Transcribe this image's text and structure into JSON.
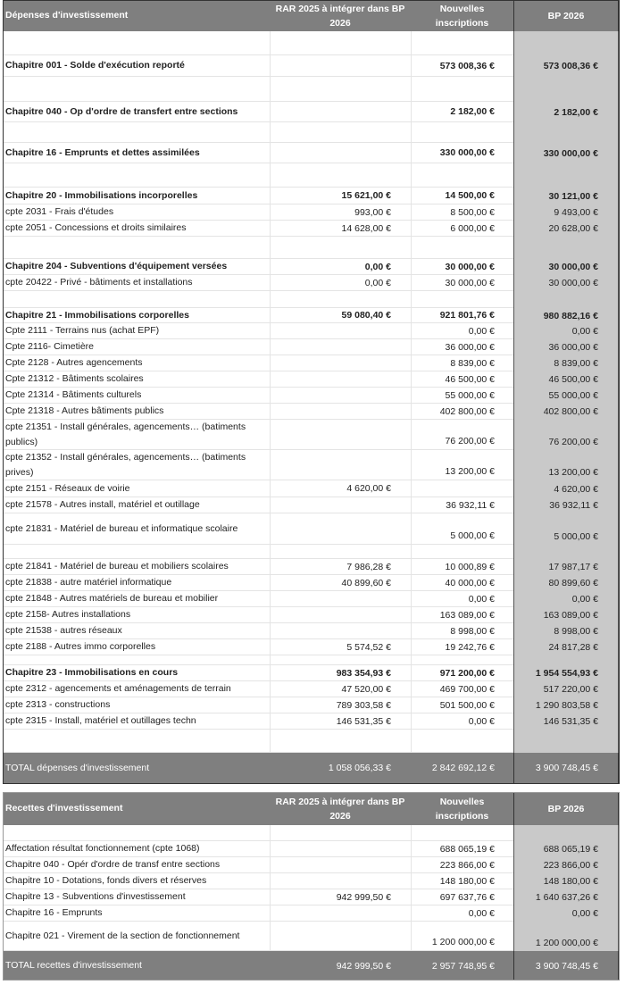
{
  "depenses": {
    "header": {
      "label": "Dépenses d'investissement",
      "rar": "RAR 2025 à intégrer dans BP 2026",
      "nouvelles": "Nouvelles inscriptions",
      "bp": "BP 2026"
    },
    "rows": [
      {
        "label": "Chapitre 001 - Solde d'exécution reporté",
        "rar": "",
        "nouvelles": "573 008,36 €",
        "bp": "573 008,36 €",
        "bold": true
      },
      {
        "label": "Chapitre 040 - Op d'ordre de transfert entre sections",
        "rar": "",
        "nouvelles": "2 182,00 €",
        "bp": "2 182,00 €",
        "bold": true
      },
      {
        "label": "Chapitre 16 - Emprunts et dettes assimilées",
        "rar": "",
        "nouvelles": "330 000,00 €",
        "bp": "330 000,00 €",
        "bold": true
      },
      {
        "label": "Chapitre 20 - Immobilisations incorporelles",
        "rar": "15 621,00 €",
        "nouvelles": "14 500,00 €",
        "bp": "30 121,00 €",
        "bold": true
      },
      {
        "label": "cpte 2031 - Frais d'études",
        "rar": "993,00 €",
        "nouvelles": "8 500,00 €",
        "bp": "9 493,00 €"
      },
      {
        "label": "cpte 2051 - Concessions et droits similaires",
        "rar": "14 628,00 €",
        "nouvelles": "6 000,00 €",
        "bp": "20 628,00 €"
      },
      {
        "label": "Chapitre 204 - Subventions d'équipement versées",
        "rar": "0,00 €",
        "nouvelles": "30 000,00 €",
        "bp": "30 000,00 €",
        "bold": true
      },
      {
        "label": "cpte 20422 - Privé - bâtiments et installations",
        "rar": "0,00 €",
        "nouvelles": "30 000,00 €",
        "bp": "30 000,00 €"
      },
      {
        "label": "Chapitre 21 - Immobilisations corporelles",
        "rar": "59 080,40 €",
        "nouvelles": "921 801,76 €",
        "bp": "980 882,16 €",
        "bold": true
      },
      {
        "label": "Cpte 2111 - Terrains nus (achat EPF)",
        "rar": "",
        "nouvelles": "0,00 €",
        "bp": "0,00 €"
      },
      {
        "label": "Cpte 2116- Cimetière",
        "rar": "",
        "nouvelles": "36 000,00 €",
        "bp": "36 000,00 €"
      },
      {
        "label": "Cpte 2128 - Autres agencements",
        "rar": "",
        "nouvelles": "8 839,00 €",
        "bp": "8 839,00 €"
      },
      {
        "label": "Cpte 21312 - Bâtiments scolaires",
        "rar": "",
        "nouvelles": "46 500,00 €",
        "bp": "46 500,00 €"
      },
      {
        "label": "Cpte 21314 - Bâtiments culturels",
        "rar": "",
        "nouvelles": "55 000,00 €",
        "bp": "55 000,00 €"
      },
      {
        "label": "Cpte 21318 - Autres bâtiments publics",
        "rar": "",
        "nouvelles": "402 800,00 €",
        "bp": "402 800,00 €"
      },
      {
        "label": "cpte 21351 - Install générales, agencements… (batiments publics)",
        "rar": "",
        "nouvelles": "76 200,00 €",
        "bp": "76 200,00 €"
      },
      {
        "label": "cpte 21352 - Install générales, agencements… (batiments prives)",
        "rar": "",
        "nouvelles": "13 200,00 €",
        "bp": "13 200,00 €"
      },
      {
        "label": "cpte 2151 - Réseaux de voirie",
        "rar": "4 620,00 €",
        "nouvelles": "",
        "bp": "4 620,00 €"
      },
      {
        "label": "cpte 21578 - Autres install, matériel et outillage",
        "rar": "",
        "nouvelles": "36 932,11 €",
        "bp": "36 932,11 €"
      },
      {
        "label": "cpte 21831 - Matériel de bureau et informatique scolaire",
        "rar": "",
        "nouvelles": "5 000,00 €",
        "bp": "5 000,00 €"
      },
      {
        "label": "cpte 21841 - Matériel de bureau et mobiliers scolaires",
        "rar": "7 986,28 €",
        "nouvelles": "10 000,89 €",
        "bp": "17 987,17 €"
      },
      {
        "label": "cpte 21838 - autre matériel informatique",
        "rar": "40 899,60 €",
        "nouvelles": "40 000,00 €",
        "bp": "80 899,60 €"
      },
      {
        "label": "cpte 21848 - Autres matériels de bureau et mobilier",
        "rar": "",
        "nouvelles": "0,00 €",
        "bp": "0,00 €"
      },
      {
        "label": "cpte 2158- Autres installations",
        "rar": "",
        "nouvelles": "163 089,00 €",
        "bp": "163 089,00 €"
      },
      {
        "label": "cpte 21538 - autres réseaux",
        "rar": "",
        "nouvelles": "8 998,00 €",
        "bp": "8 998,00 €"
      },
      {
        "label": "cpte 2188 - Autres immo corporelles",
        "rar": "5 574,52 €",
        "nouvelles": "19 242,76 €",
        "bp": "24 817,28 €"
      },
      {
        "label": "Chapitre 23 - Immobilisations en cours",
        "rar": "983 354,93 €",
        "nouvelles": "971 200,00 €",
        "bp": "1 954 554,93 €",
        "bold": true
      },
      {
        "label": "cpte 2312 - agencements et aménagements de terrain",
        "rar": "47 520,00 €",
        "nouvelles": "469 700,00 €",
        "bp": "517 220,00 €"
      },
      {
        "label": "cpte 2313 - constructions",
        "rar": "789 303,58 €",
        "nouvelles": "501 500,00 €",
        "bp": "1 290 803,58 €"
      },
      {
        "label": "cpte 2315 - Install, matériel et outillages techn",
        "rar": "146 531,35 €",
        "nouvelles": "0,00 €",
        "bp": "146 531,35 €"
      }
    ],
    "total": {
      "label": "TOTAL dépenses d'investissement",
      "rar": "1 058 056,33 €",
      "nouvelles": "2 842 692,12 €",
      "bp": "3 900 748,45 €"
    }
  },
  "recettes": {
    "header": {
      "label": "Recettes d'investissement",
      "rar": "RAR 2025 à intégrer dans BP 2026",
      "nouvelles": "Nouvelles inscriptions",
      "bp": "BP 2026"
    },
    "rows": [
      {
        "label": "Affectation résultat fonctionnement (cpte 1068)",
        "rar": "",
        "nouvelles": "688 065,19 €",
        "bp": "688 065,19 €"
      },
      {
        "label": "Chapitre 040 - Opér d'ordre de transf entre sections",
        "rar": "",
        "nouvelles": "223 866,00 €",
        "bp": "223 866,00 €"
      },
      {
        "label": "Chapitre 10 - Dotations, fonds divers et réserves",
        "rar": "",
        "nouvelles": "148 180,00 €",
        "bp": "148 180,00 €"
      },
      {
        "label": "Chapitre 13 - Subventions d'investissement",
        "rar": "942 999,50 €",
        "nouvelles": "697 637,76 €",
        "bp": "1 640 637,26 €"
      },
      {
        "label": "Chapitre 16 - Emprunts",
        "rar": "",
        "nouvelles": "0,00 €",
        "bp": "0,00 €"
      },
      {
        "label": "Chapitre 021 - Virement de la section de fonctionnement",
        "rar": "",
        "nouvelles": "1 200 000,00 €",
        "bp": "1 200 000,00 €"
      }
    ],
    "total": {
      "label": "TOTAL recettes d'investissement",
      "rar": "942 999,50 €",
      "nouvelles": "2 957 748,95 €",
      "bp": "3 900 748,45 €"
    }
  },
  "colors": {
    "header_bg": "#7f7f7f",
    "bp_column_bg": "#c9c9c9"
  }
}
